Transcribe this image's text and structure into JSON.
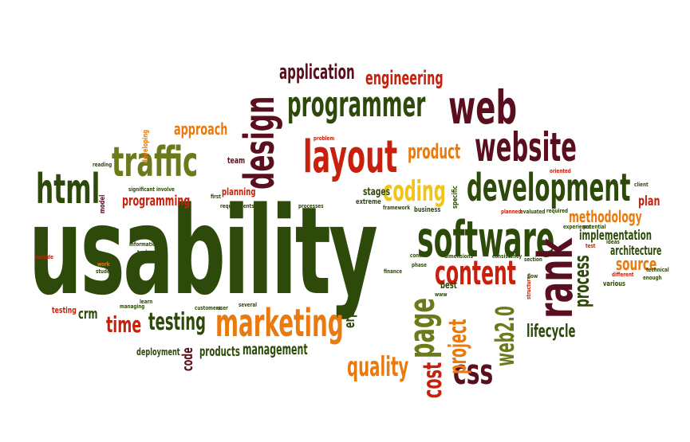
{
  "palette": {
    "dark_green": "#2e4a0a",
    "olive": "#6b7a1a",
    "maroon": "#5a0f1e",
    "red": "#c8200c",
    "orange": "#e87a10",
    "yellow": "#f0c419",
    "gray": "#7b6b5a"
  },
  "words": {
    "usability": "usability",
    "application": "application",
    "engineering": "engineering",
    "programmer": "programmer",
    "web": "web",
    "website": "website",
    "design": "design",
    "traffic": "traffic",
    "layout": "layout",
    "product": "product",
    "coding": "coding",
    "development": "development",
    "html": "html",
    "approach": "approach",
    "programming": "programming",
    "planning": "planning",
    "software": "software",
    "methodology": "methodology",
    "plan": "plan",
    "implementation": "implementation",
    "architecture": "architecture",
    "source": "source",
    "rank": "rank",
    "process": "process",
    "content": "content",
    "marketing": "marketing",
    "testing": "testing",
    "time": "time",
    "crm": "crm",
    "erp": "erp",
    "page": "page",
    "project": "project",
    "web20": "web2.0",
    "lifecycle": "lifecycle",
    "quality": "quality",
    "cost": "cost",
    "css": "css",
    "management": "management",
    "products": "products",
    "code": "code",
    "deployment": "deployment",
    "testing_small": "testing",
    "best": "best",
    "team": "team",
    "stages": "stages",
    "extreme": "extreme",
    "business": "business",
    "specific": "specific",
    "requirements": "requirements",
    "processes": "processes",
    "developing": "developing",
    "model": "model",
    "significant": "significant",
    "students": "students",
    "information": "information",
    "managing": "managing",
    "customers": "customers",
    "consistency": "consistency",
    "dimensions": "dimensions",
    "various": "various",
    "technical": "technical",
    "enough": "enough",
    "different": "different",
    "framework": "framework",
    "phase": "phase",
    "control": "control",
    "finance": "finance",
    "www": "www",
    "problem": "problem",
    "section": "section",
    "client": "client",
    "oriented": "oriented",
    "potential": "potential",
    "ideas": "ideas",
    "flow": "flow",
    "user": "user",
    "several": "several",
    "evaluated": "evaluated",
    "planned": "planned",
    "required": "required",
    "first": "first",
    "involve": "involve",
    "reading": "reading",
    "include": "include",
    "work": "work",
    "topic": "topic",
    "learn": "learn",
    "structure": "structure",
    "experience": "experience",
    "test": "test"
  }
}
